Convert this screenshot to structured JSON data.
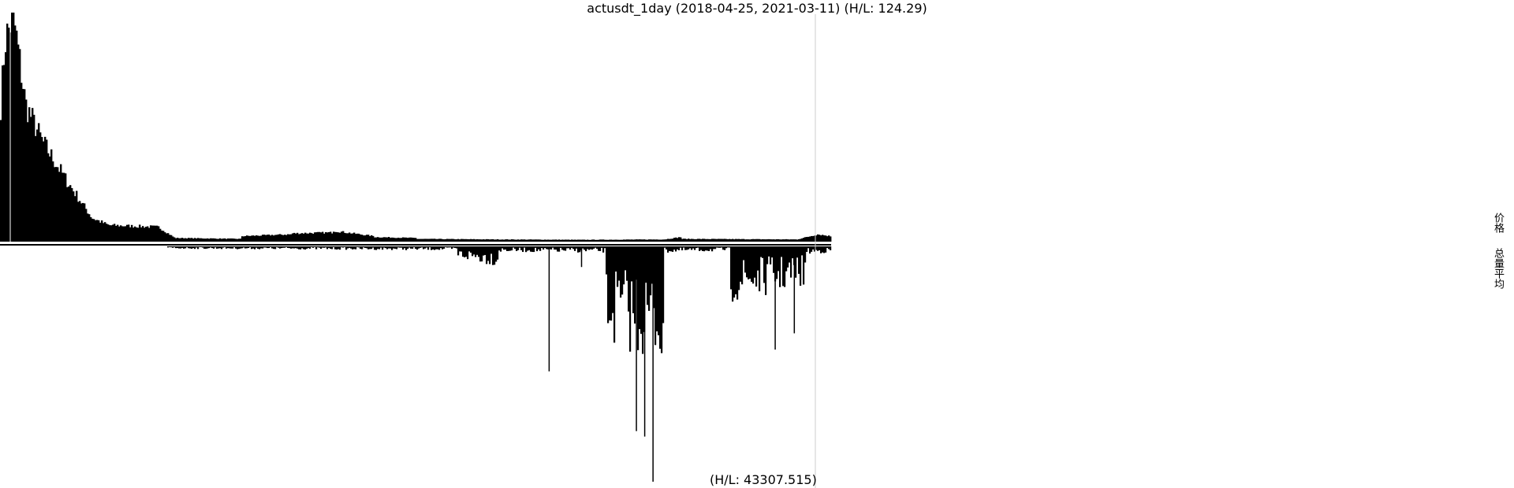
{
  "chart_title": "actusdt_1day (2018-04-25, 2021-03-11) (H/L: 124.29)",
  "bottom_label": "(H/L: 43307.515)",
  "side_labels": {
    "price": "价格",
    "volume": "总量平均"
  },
  "colors": {
    "bars": "#000000",
    "cursor_line": "#cccccc",
    "background": "#ffffff"
  },
  "chart_data": [
    {
      "type": "bar",
      "title": "actusdt_1day (2018-04-25, 2021-03-11) (H/L: 124.29)",
      "x_range": [
        "2018-04-25",
        "2021-03-11"
      ],
      "series": [
        {
          "values_by_segment": [
            {
              "from": 0.0,
              "to": 0.005,
              "start": 75,
              "end": 110
            },
            {
              "from": 0.005,
              "to": 0.015,
              "start": 110,
              "end": 124.29
            },
            {
              "from": 0.015,
              "to": 0.03,
              "start": 124.29,
              "end": 75
            },
            {
              "from": 0.03,
              "to": 0.05,
              "start": 75,
              "end": 55
            },
            {
              "from": 0.05,
              "to": 0.08,
              "start": 55,
              "end": 33
            },
            {
              "from": 0.08,
              "to": 0.11,
              "start": 33,
              "end": 13
            },
            {
              "from": 0.11,
              "to": 0.13,
              "start": 13,
              "end": 9
            },
            {
              "from": 0.13,
              "to": 0.19,
              "start": 9,
              "end": 8
            },
            {
              "from": 0.19,
              "to": 0.21,
              "start": 8,
              "end": 2
            },
            {
              "from": 0.21,
              "to": 0.29,
              "start": 2,
              "end": 1.5
            },
            {
              "from": 0.29,
              "to": 0.35,
              "start": 3,
              "end": 4
            },
            {
              "from": 0.35,
              "to": 0.4,
              "start": 4.5,
              "end": 5
            },
            {
              "from": 0.4,
              "to": 0.45,
              "start": 6,
              "end": 3
            },
            {
              "from": 0.45,
              "to": 0.5,
              "start": 2.5,
              "end": 2
            },
            {
              "from": 0.5,
              "to": 0.6,
              "start": 1.5,
              "end": 1.2
            },
            {
              "from": 0.6,
              "to": 0.7,
              "start": 1.2,
              "end": 1.0
            },
            {
              "from": 0.7,
              "to": 0.8,
              "start": 1.0,
              "end": 1.2
            },
            {
              "from": 0.8,
              "to": 0.82,
              "start": 1.2,
              "end": 2.5
            },
            {
              "from": 0.82,
              "to": 0.96,
              "start": 1.5,
              "end": 1.2
            },
            {
              "from": 0.96,
              "to": 0.985,
              "start": 1.2,
              "end": 4
            },
            {
              "from": 0.985,
              "to": 1.0,
              "start": 4,
              "end": 3
            }
          ]
        }
      ],
      "ylim": [
        0,
        124.29
      ]
    },
    {
      "type": "bar",
      "title": "(H/L: 43307.515)",
      "x_range": [
        "2018-04-25",
        "2021-03-11"
      ],
      "series": [
        {
          "values_by_segment": [
            {
              "from": 0.0,
              "to": 0.2,
              "start": 0,
              "end": 0
            },
            {
              "from": 0.2,
              "to": 0.55,
              "start": 300,
              "end": 500
            },
            {
              "from": 0.55,
              "to": 0.6,
              "start": 1500,
              "end": 2500
            },
            {
              "from": 0.6,
              "to": 0.73,
              "start": 700,
              "end": 800
            },
            {
              "from": 0.73,
              "to": 0.8,
              "start": 12000,
              "end": 15000
            },
            {
              "from": 0.8,
              "to": 0.88,
              "start": 800,
              "end": 600
            },
            {
              "from": 0.88,
              "to": 0.97,
              "start": 7000,
              "end": 5000
            },
            {
              "from": 0.97,
              "to": 1.0,
              "start": 1000,
              "end": 800
            }
          ],
          "spikes": [
            {
              "x": 0.66,
              "value": 23000
            },
            {
              "x": 0.765,
              "value": 34000
            },
            {
              "x": 0.775,
              "value": 35000
            },
            {
              "x": 0.785,
              "value": 43307.515
            },
            {
              "x": 0.932,
              "value": 19000
            },
            {
              "x": 0.955,
              "value": 16000
            },
            {
              "x": 0.587,
              "value": 2500
            },
            {
              "x": 0.699,
              "value": 3800
            }
          ]
        }
      ],
      "ylim": [
        0,
        43307.515
      ]
    }
  ]
}
